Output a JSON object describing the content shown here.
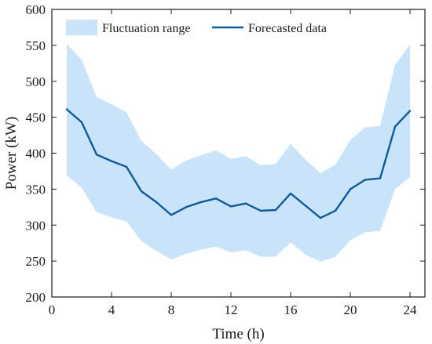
{
  "chart_data": {
    "type": "line",
    "title": "",
    "xlabel": "Time (h)",
    "ylabel": "Power (kW)",
    "xlim": [
      0,
      25
    ],
    "ylim": [
      200,
      600
    ],
    "xticks": [
      0,
      4,
      8,
      12,
      16,
      20,
      24
    ],
    "yticks": [
      200,
      250,
      300,
      350,
      400,
      450,
      500,
      550,
      600
    ],
    "grid": false,
    "legend_position": "top",
    "x": [
      1,
      2,
      3,
      4,
      5,
      6,
      7,
      8,
      9,
      10,
      11,
      12,
      13,
      14,
      15,
      16,
      17,
      18,
      19,
      20,
      21,
      22,
      23,
      24
    ],
    "series": [
      {
        "name": "Fluctuation range",
        "kind": "band",
        "color": "#c9e3fa",
        "upper": [
          552,
          530,
          478,
          468,
          457,
          417,
          399,
          377,
          390,
          397,
          404,
          392,
          396,
          383,
          385,
          413,
          391,
          372,
          384,
          418,
          436,
          438,
          523,
          551
        ],
        "lower": [
          369,
          352,
          318,
          311,
          305,
          278,
          264,
          252,
          260,
          266,
          270,
          262,
          265,
          256,
          256,
          276,
          259,
          249,
          256,
          279,
          290,
          292,
          350,
          367
        ]
      },
      {
        "name": "Forecasted data",
        "kind": "line",
        "color": "#0d5a9c",
        "values": [
          461,
          443,
          398,
          389,
          381,
          347,
          332,
          314,
          325,
          332,
          337,
          326,
          330,
          320,
          321,
          344,
          327,
          310,
          320,
          350,
          363,
          365,
          437,
          459
        ]
      }
    ]
  }
}
